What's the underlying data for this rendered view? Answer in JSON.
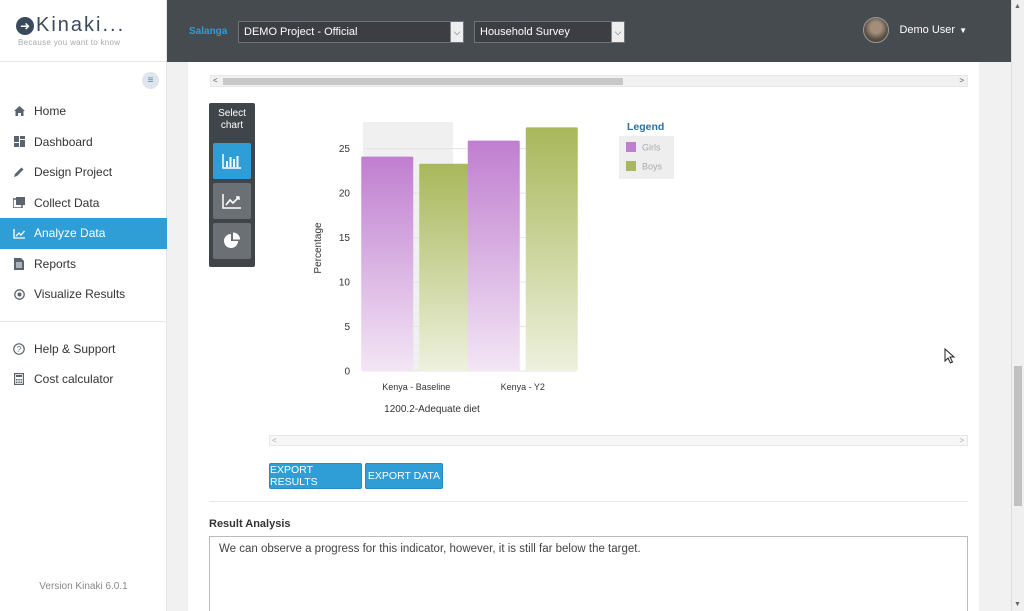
{
  "app": {
    "logo_text": "Kinaki...",
    "tagline": "Because you want to know",
    "version": "Version Kinaki 6.0.1"
  },
  "sidebar": {
    "items": [
      {
        "label": "Home",
        "icon": "home-icon"
      },
      {
        "label": "Dashboard",
        "icon": "dashboard-icon"
      },
      {
        "label": "Design Project",
        "icon": "pencil-icon"
      },
      {
        "label": "Collect Data",
        "icon": "collect-icon"
      },
      {
        "label": "Analyze Data",
        "icon": "chart-line-icon",
        "active": true
      },
      {
        "label": "Reports",
        "icon": "document-icon"
      },
      {
        "label": "Visualize Results",
        "icon": "target-icon"
      }
    ],
    "support_items": [
      {
        "label": "Help & Support",
        "icon": "help-icon"
      },
      {
        "label": "Cost calculator",
        "icon": "calculator-icon"
      }
    ]
  },
  "topbar": {
    "organization": "Salanga",
    "project_select": "DEMO Project - Official",
    "survey_select": "Household Survey",
    "user_name": "Demo User"
  },
  "chart_panel": {
    "select_chart_label": "Select chart",
    "chart_types": [
      "bar",
      "line",
      "pie"
    ],
    "active_type": "bar"
  },
  "chart_data": {
    "type": "bar",
    "categories": [
      "Kenya - Baseline",
      "Kenya - Y2"
    ],
    "series": [
      {
        "name": "Girls",
        "values": [
          24.1,
          25.9
        ],
        "color": "#c07ed0"
      },
      {
        "name": "Boys",
        "values": [
          23.3,
          27.4
        ],
        "color": "#a8b85a"
      }
    ],
    "xlabel": "1200.2-Adequate diet",
    "ylabel": "Percentage",
    "ylim": [
      0,
      28
    ],
    "yticks": [
      0,
      5,
      10,
      15,
      20,
      25
    ],
    "legend_title": "Legend",
    "legend_position": "top-right",
    "grid": true
  },
  "actions": {
    "export_results": "EXPORT RESULTS",
    "export_data": "EXPORT DATA"
  },
  "analysis": {
    "title": "Result Analysis",
    "text": "We can observe a progress for this indicator, however, it is still far below the target."
  }
}
